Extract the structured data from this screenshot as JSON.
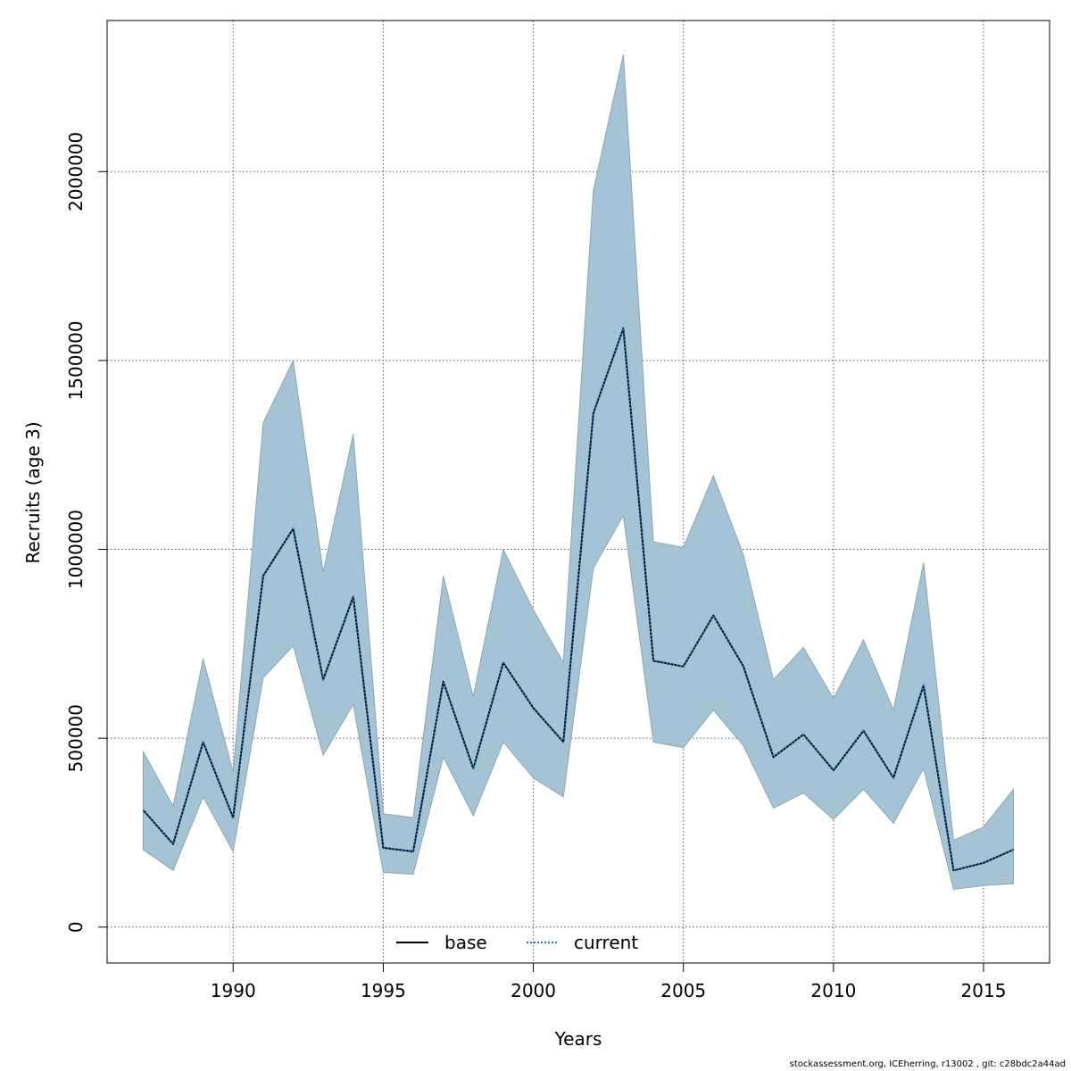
{
  "chart_data": {
    "type": "line",
    "xlabel": "Years",
    "ylabel": "Recruits (age 3)",
    "xlim": [
      1985.8,
      2017.2
    ],
    "ylim": [
      -95000,
      2400000
    ],
    "xticks": [
      1990,
      1995,
      2000,
      2005,
      2010,
      2015
    ],
    "yticks": [
      0,
      500000,
      1000000,
      1500000,
      2000000
    ],
    "grid": true,
    "legend_position": "bottom-center",
    "band_color": "#a4c4d6",
    "band_edge_color": "#8aa5b5",
    "x": [
      1987,
      1988,
      1989,
      1990,
      1991,
      1992,
      1993,
      1994,
      1995,
      1996,
      1997,
      1998,
      1999,
      2000,
      2001,
      2002,
      2003,
      2004,
      2005,
      2006,
      2007,
      2008,
      2009,
      2010,
      2011,
      2012,
      2013,
      2014,
      2015,
      2016
    ],
    "series": [
      {
        "name": "base",
        "line_style": "solid",
        "color": "#000000",
        "values": [
          310000,
          220000,
          490000,
          290000,
          930000,
          1055000,
          655000,
          875000,
          210000,
          200000,
          650000,
          420000,
          700000,
          580000,
          490000,
          1360000,
          1585000,
          705000,
          690000,
          825000,
          690000,
          450000,
          510000,
          415000,
          520000,
          395000,
          640000,
          150000,
          170000,
          205000
        ]
      },
      {
        "name": "current",
        "line_style": "dotted",
        "color": "#1f6fb2",
        "values": [
          310000,
          220000,
          490000,
          290000,
          930000,
          1055000,
          655000,
          875000,
          210000,
          200000,
          650000,
          420000,
          700000,
          580000,
          490000,
          1360000,
          1585000,
          705000,
          690000,
          825000,
          690000,
          450000,
          510000,
          415000,
          520000,
          395000,
          640000,
          150000,
          170000,
          205000
        ]
      }
    ],
    "upper": [
      465000,
      320000,
      710000,
      410000,
      1335000,
      1500000,
      940000,
      1305000,
      300000,
      290000,
      930000,
      610000,
      1000000,
      840000,
      700000,
      1950000,
      2310000,
      1020000,
      1005000,
      1195000,
      985000,
      655000,
      740000,
      605000,
      760000,
      575000,
      965000,
      230000,
      265000,
      365000
    ],
    "lower": [
      205000,
      150000,
      345000,
      200000,
      660000,
      745000,
      455000,
      590000,
      145000,
      140000,
      450000,
      295000,
      490000,
      395000,
      345000,
      950000,
      1090000,
      490000,
      475000,
      575000,
      480000,
      315000,
      355000,
      285000,
      365000,
      275000,
      420000,
      100000,
      110000,
      115000
    ]
  },
  "footer_text": "stockassessment.org, ICEherring, r13002 , git: c28bdc2a44ad"
}
